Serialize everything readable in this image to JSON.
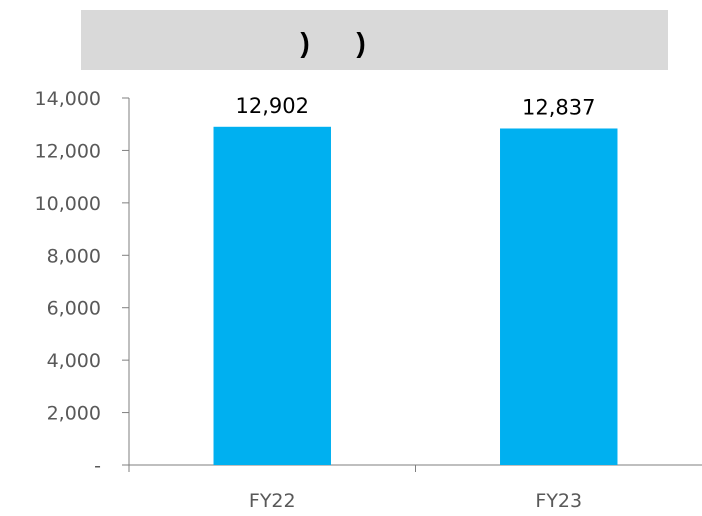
{
  "chart_data": {
    "type": "bar",
    "title": ")      )",
    "categories": [
      "FY22",
      "FY23"
    ],
    "values": [
      12902,
      12837
    ],
    "data_labels": [
      "12,902",
      "12,837"
    ],
    "ylim": [
      0,
      14000
    ],
    "yticks": [
      0,
      2000,
      4000,
      6000,
      8000,
      10000,
      12000,
      14000
    ],
    "ytick_labels": [
      "-",
      "2,000",
      "4,000",
      "6,000",
      "8,000",
      "10,000",
      "12,000",
      "14,000"
    ],
    "grid": false,
    "legend": "none",
    "xlabel": "",
    "ylabel": "",
    "colors": {
      "bar": "#00b0f0",
      "axis": "#7f7f7f",
      "title_background": "#d9d9d9"
    }
  }
}
